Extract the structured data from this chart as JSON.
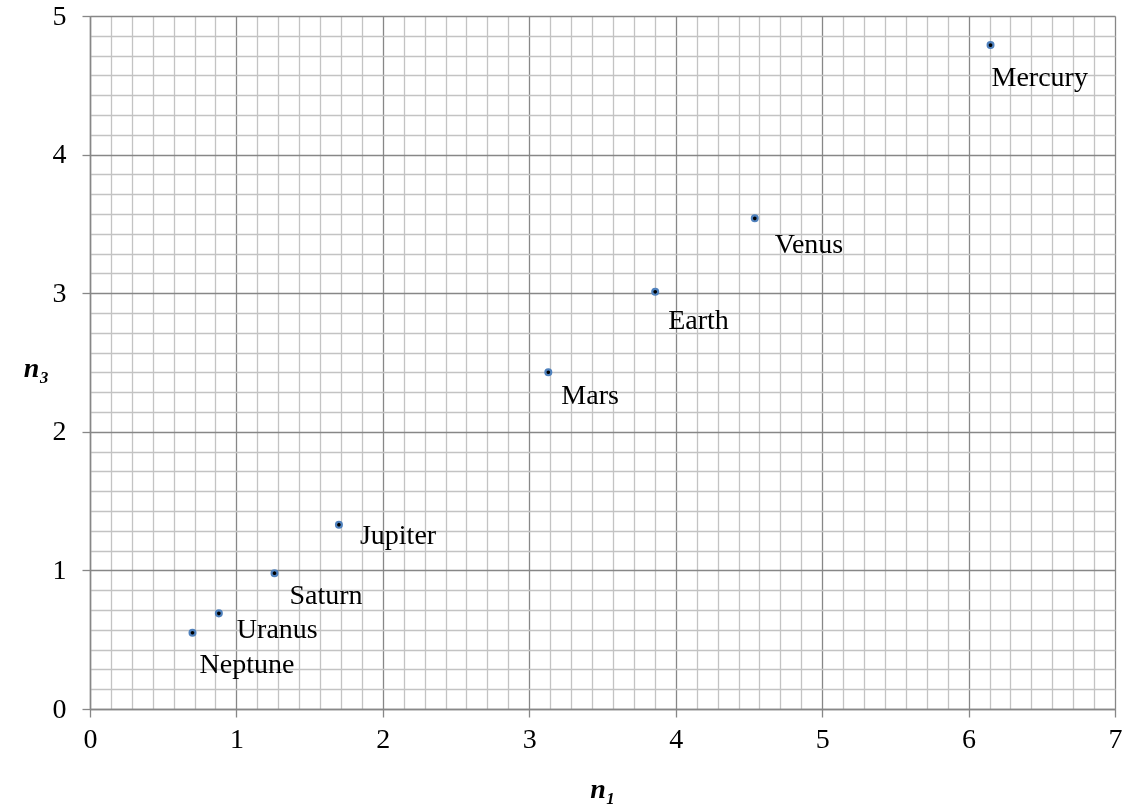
{
  "chart_data": {
    "type": "scatter",
    "xlabel": "n₁",
    "ylabel": "n₃",
    "x": [
      6.15,
      4.54,
      3.86,
      3.13,
      1.7,
      1.26,
      0.88,
      0.7
    ],
    "series": [
      {
        "color": "#4f81bd",
        "values": [
          4.79,
          3.54,
          3.01,
          2.43,
          1.33,
          0.98,
          0.69,
          0.55
        ]
      }
    ],
    "xlim": [
      0,
      7
    ],
    "ylim": [
      0,
      5
    ],
    "xticks": [
      0,
      {
        "value": 0.143,
        "label": null
      },
      {
        "value": 0.286,
        "label": null
      },
      {
        "value": 0.429,
        "label": null
      },
      {
        "value": 0.571,
        "label": null
      },
      {
        "value": 0.714,
        "label": null
      },
      {
        "value": 0.857,
        "label": null
      },
      1,
      {
        "value": 1.143,
        "label": null
      },
      {
        "value": 1.286,
        "label": null
      },
      {
        "value": 1.429,
        "label": null
      },
      {
        "value": 1.571,
        "label": null
      },
      {
        "value": 1.714,
        "label": null
      },
      {
        "value": 1.857,
        "label": null
      },
      2,
      {
        "value": 2.143,
        "label": null
      },
      {
        "value": 2.286,
        "label": null
      },
      {
        "value": 2.429,
        "label": null
      },
      {
        "value": 2.571,
        "label": null
      },
      {
        "value": 2.714,
        "label": null
      },
      {
        "value": 2.857,
        "label": null
      },
      3,
      {
        "value": 3.143,
        "label": null
      },
      {
        "value": 3.286,
        "label": null
      },
      {
        "value": 3.429,
        "label": null
      },
      {
        "value": 3.571,
        "label": null
      },
      {
        "value": 3.714,
        "label": null
      },
      {
        "value": 3.857,
        "label": null
      },
      4,
      {
        "value": 4.143,
        "label": null
      },
      {
        "value": 4.286,
        "label": null
      },
      {
        "value": 4.429,
        "label": null
      },
      {
        "value": 4.571,
        "label": null
      },
      {
        "value": 4.714,
        "label": null
      },
      {
        "value": 4.857,
        "label": null
      },
      5,
      {
        "value": 5.143,
        "label": null
      },
      {
        "value": 5.286,
        "label": null
      },
      {
        "value": 5.429,
        "label": null
      },
      {
        "value": 5.571,
        "label": null
      },
      {
        "value": 5.714,
        "label": null
      },
      {
        "value": 5.857,
        "label": null
      },
      6,
      {
        "value": 6.143,
        "label": null
      },
      {
        "value": 6.286,
        "label": null
      },
      {
        "value": 6.429,
        "label": null
      },
      {
        "value": 6.571,
        "label": null
      },
      {
        "value": 6.714,
        "label": null
      },
      {
        "value": 6.857,
        "label": null
      },
      7
    ],
    "yticks": [
      0,
      {
        "value": 0.143,
        "label": null
      },
      {
        "value": 0.286,
        "label": null
      },
      {
        "value": 0.429,
        "label": null
      },
      {
        "value": 0.571,
        "label": null
      },
      {
        "value": 0.714,
        "label": null
      },
      {
        "value": 0.857,
        "label": null
      },
      1,
      {
        "value": 1.143,
        "label": null
      },
      {
        "value": 1.286,
        "label": null
      },
      {
        "value": 1.429,
        "label": null
      },
      {
        "value": 1.571,
        "label": null
      },
      {
        "value": 1.714,
        "label": null
      },
      {
        "value": 1.857,
        "label": null
      },
      2,
      {
        "value": 2.143,
        "label": null
      },
      {
        "value": 2.286,
        "label": null
      },
      {
        "value": 2.429,
        "label": null
      },
      {
        "value": 2.571,
        "label": null
      },
      {
        "value": 2.714,
        "label": null
      },
      {
        "value": 2.857,
        "label": null
      },
      3,
      {
        "value": 3.143,
        "label": null
      },
      {
        "value": 3.286,
        "label": null
      },
      {
        "value": 3.429,
        "label": null
      },
      {
        "value": 3.571,
        "label": null
      },
      {
        "value": 3.714,
        "label": null
      },
      {
        "value": 3.857,
        "label": null
      },
      4,
      {
        "value": 4.143,
        "label": null
      },
      {
        "value": 4.286,
        "label": null
      },
      {
        "value": 4.429,
        "label": null
      },
      {
        "value": 4.571,
        "label": null
      },
      {
        "value": 4.714,
        "label": null
      },
      {
        "value": 4.857,
        "label": null
      },
      5
    ],
    "grid": true,
    "marker": "circle",
    "annotations": [
      {
        "text": "Mercury",
        "x": 6.15,
        "y": 4.79
      },
      {
        "text": "Venus",
        "x": 4.54,
        "y": 3.54
      },
      {
        "text": "Earth",
        "x": 3.86,
        "y": 3.01
      },
      {
        "text": "Mars",
        "x": 3.13,
        "y": 2.43
      },
      {
        "text": "Jupiter",
        "x": 1.7,
        "y": 1.33
      },
      {
        "text": "Saturn",
        "x": 1.26,
        "y": 0.98
      },
      {
        "text": "Uranus",
        "x": 0.88,
        "y": 0.69
      },
      {
        "text": "Neptune",
        "x": 0.7,
        "y": 0.55
      }
    ]
  }
}
